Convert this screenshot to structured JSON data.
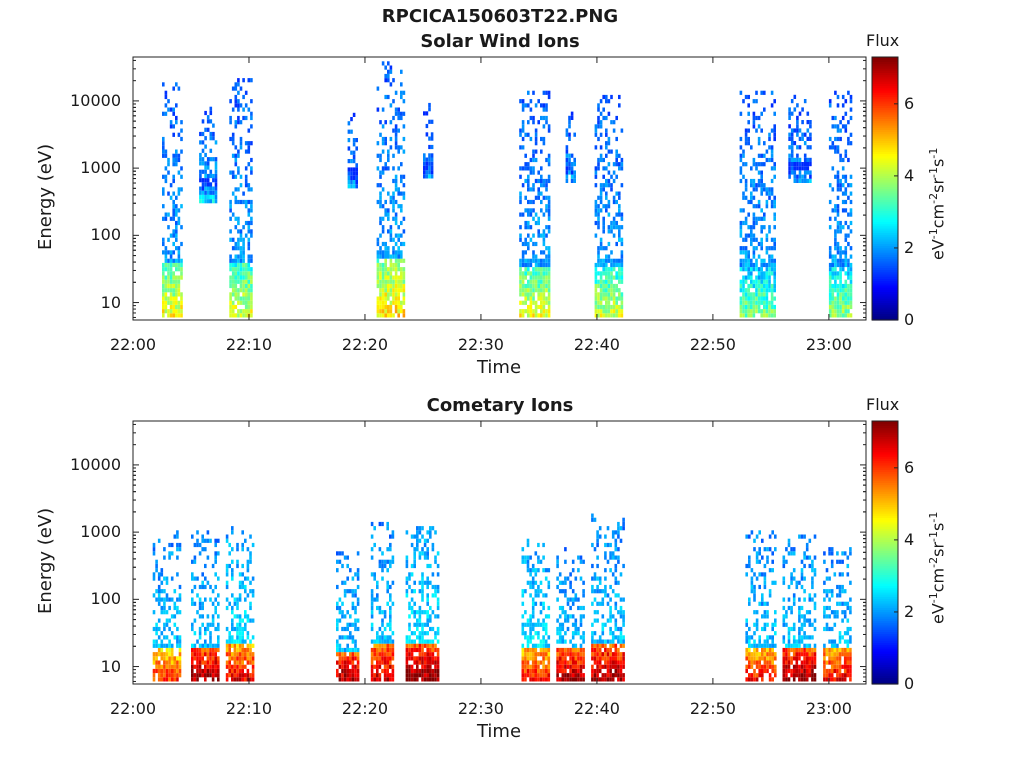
{
  "figure": {
    "title": "RPCICA150603T22.PNG"
  },
  "colorbar": {
    "title": "Flux",
    "ticks": [
      "0",
      "2",
      "4",
      "6"
    ],
    "label_parts": [
      "eV",
      "-1",
      "cm",
      "-2",
      "sr",
      "-1",
      "s",
      "-1"
    ],
    "colors": [
      "#00007f",
      "#0000ff",
      "#0080ff",
      "#00ffff",
      "#80ff80",
      "#ffff00",
      "#ff8000",
      "#ff0000",
      "#7f0000"
    ]
  },
  "chart_data": [
    {
      "type": "heatmap",
      "title": "Solar Wind Ions",
      "xlabel": "Time",
      "ylabel": "Energy (eV)",
      "yscale": "log",
      "x_ticks": [
        "22:00",
        "22:10",
        "22:20",
        "22:30",
        "22:40",
        "22:50",
        "23:00"
      ],
      "y_ticks": [
        "10",
        "100",
        "1000",
        "10000"
      ],
      "clim": [
        0,
        7.3
      ],
      "clabel": "eV-1cm-2sr-1s-1",
      "bursts": [
        {
          "start": "22:02.5",
          "end": "22:04.2",
          "emin": 6,
          "emax": 20000,
          "lowflux": 4.5,
          "highflux": 2.0
        },
        {
          "start": "22:05.7",
          "end": "22:07.2",
          "emin": 300,
          "emax": 8000,
          "lowflux": 2.5,
          "highflux": 2.0
        },
        {
          "start": "22:08.3",
          "end": "22:10.3",
          "emin": 6,
          "emax": 25000,
          "lowflux": 4.3,
          "highflux": 2.0
        },
        {
          "start": "22:18.5",
          "end": "22:19.5",
          "emin": 500,
          "emax": 9000,
          "lowflux": 2.0,
          "highflux": 1.8
        },
        {
          "start": "22:21.0",
          "end": "22:23.5",
          "emin": 6,
          "emax": 38000,
          "lowflux": 4.8,
          "highflux": 2.0
        },
        {
          "start": "22:25.0",
          "end": "22:26.0",
          "emin": 700,
          "emax": 9000,
          "lowflux": 2.0,
          "highflux": 1.8
        },
        {
          "start": "22:33.3",
          "end": "22:36.0",
          "emin": 6,
          "emax": 15000,
          "lowflux": 4.4,
          "highflux": 2.0
        },
        {
          "start": "22:37.3",
          "end": "22:38.3",
          "emin": 600,
          "emax": 8000,
          "lowflux": 2.2,
          "highflux": 1.8
        },
        {
          "start": "22:39.8",
          "end": "22:42.2",
          "emin": 6,
          "emax": 15000,
          "lowflux": 4.2,
          "highflux": 2.0
        },
        {
          "start": "22:52.3",
          "end": "22:55.5",
          "emin": 6,
          "emax": 15000,
          "lowflux": 3.6,
          "highflux": 2.0
        },
        {
          "start": "22:56.5",
          "end": "22:58.5",
          "emin": 600,
          "emax": 12000,
          "lowflux": 2.0,
          "highflux": 1.8
        },
        {
          "start": "23:00.0",
          "end": "23:02.0",
          "emin": 6,
          "emax": 15000,
          "lowflux": 3.8,
          "highflux": 2.0
        }
      ]
    },
    {
      "type": "heatmap",
      "title": "Cometary Ions",
      "xlabel": "Time",
      "ylabel": "Energy (eV)",
      "yscale": "log",
      "x_ticks": [
        "22:00",
        "22:10",
        "22:20",
        "22:30",
        "22:40",
        "22:50",
        "23:00"
      ],
      "y_ticks": [
        "10",
        "100",
        "1000",
        "10000"
      ],
      "clim": [
        0,
        7.3
      ],
      "clabel": "eV-1cm-2sr-1s-1",
      "bursts": [
        {
          "start": "22:01.7",
          "end": "22:04.2",
          "emin": 6,
          "emax": 1000,
          "lowflux": 6.0,
          "highflux": 2.3
        },
        {
          "start": "22:05.0",
          "end": "22:07.5",
          "emin": 6,
          "emax": 1000,
          "lowflux": 7.0,
          "highflux": 2.3
        },
        {
          "start": "22:08.0",
          "end": "22:10.5",
          "emin": 6,
          "emax": 1200,
          "lowflux": 6.5,
          "highflux": 2.5
        },
        {
          "start": "22:17.5",
          "end": "22:19.5",
          "emin": 6,
          "emax": 500,
          "lowflux": 7.0,
          "highflux": 2.3
        },
        {
          "start": "22:20.5",
          "end": "22:22.5",
          "emin": 6,
          "emax": 1500,
          "lowflux": 6.8,
          "highflux": 2.3
        },
        {
          "start": "22:23.5",
          "end": "22:26.5",
          "emin": 6,
          "emax": 1300,
          "lowflux": 7.2,
          "highflux": 2.5
        },
        {
          "start": "22:33.5",
          "end": "22:36.0",
          "emin": 6,
          "emax": 800,
          "lowflux": 6.3,
          "highflux": 2.5
        },
        {
          "start": "22:36.5",
          "end": "22:39.0",
          "emin": 6,
          "emax": 600,
          "lowflux": 7.0,
          "highflux": 2.3
        },
        {
          "start": "22:39.5",
          "end": "22:42.5",
          "emin": 6,
          "emax": 1800,
          "lowflux": 7.0,
          "highflux": 2.3
        },
        {
          "start": "22:52.8",
          "end": "22:55.5",
          "emin": 6,
          "emax": 1000,
          "lowflux": 6.3,
          "highflux": 2.3
        },
        {
          "start": "22:56.0",
          "end": "22:59.0",
          "emin": 6,
          "emax": 900,
          "lowflux": 7.1,
          "highflux": 2.3
        },
        {
          "start": "22:59.5",
          "end": "23:02.0",
          "emin": 6,
          "emax": 600,
          "lowflux": 6.5,
          "highflux": 2.3
        }
      ]
    }
  ]
}
